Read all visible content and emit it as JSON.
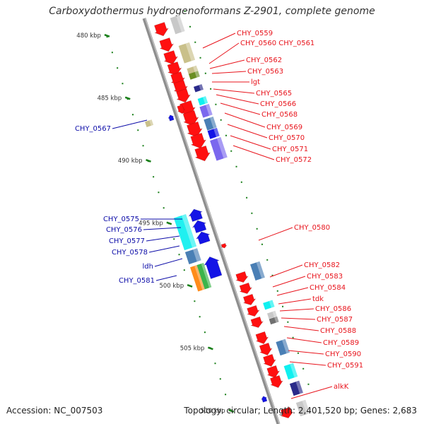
{
  "title": "Carboxydothermus hydrogenoformans Z-2901, complete genome",
  "footer": {
    "accession": "Accession: NC_007503",
    "stats": "Topology: circular; Length: 2,401,520 bp; Genes: 2,683"
  },
  "colors": {
    "forward_label": "#e8141c",
    "reverse_label": "#0c0ca8",
    "backbone": "#8e8e8e",
    "tick": "#1a7f1a"
  },
  "kbp_ticks": [
    {
      "pos": 480,
      "label": "480 kbp"
    },
    {
      "pos": 485,
      "label": "485 kbp"
    },
    {
      "pos": 490,
      "label": "490 kbp"
    },
    {
      "pos": 495,
      "label": "495 kbp"
    },
    {
      "pos": 500,
      "label": "500 kbp"
    },
    {
      "pos": 505,
      "label": "505 kbp"
    },
    {
      "pos": 510,
      "label": "510 kbp"
    }
  ],
  "forward_labels": [
    "CHY_0559",
    "CHY_0560 CHY_0561",
    "CHY_0562",
    "CHY_0563",
    "lgt",
    "CHY_0565",
    "CHY_0566",
    "CHY_0568",
    "CHY_0569",
    "CHY_0570",
    "CHY_0571",
    "CHY_0572",
    "CHY_0580",
    "CHY_0582",
    "CHY_0583",
    "CHY_0584",
    "tdk",
    "CHY_0586",
    "CHY_0587",
    "CHY_0588",
    "CHY_0589",
    "CHY_0590",
    "CHY_0591",
    "alkK"
  ],
  "reverse_labels": [
    "CHY_0567",
    "CHY_0575",
    "CHY_0576",
    "CHY_0577",
    "CHY_0578",
    "ldh",
    "CHY_0581"
  ]
}
